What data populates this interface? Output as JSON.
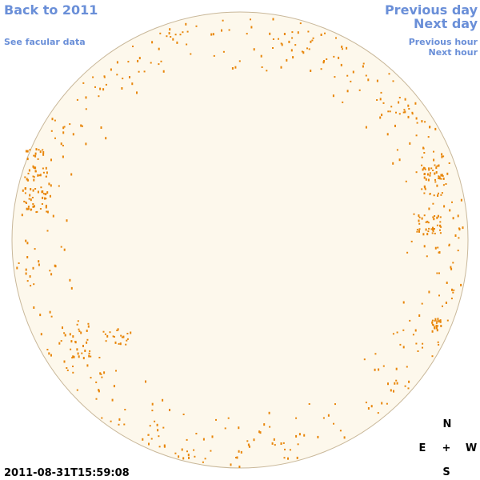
{
  "nav": {
    "back": "Back to 2011",
    "facular": "See facular data",
    "previous_day": "Previous day",
    "next_day": "Next day",
    "previous_hour": "Previous hour",
    "next_hour": "Next hour"
  },
  "timestamp": "2011-08-31T15:59:08",
  "compass": {
    "north": "N",
    "east": "E",
    "center": "+",
    "west": "W",
    "south": "S"
  }
}
